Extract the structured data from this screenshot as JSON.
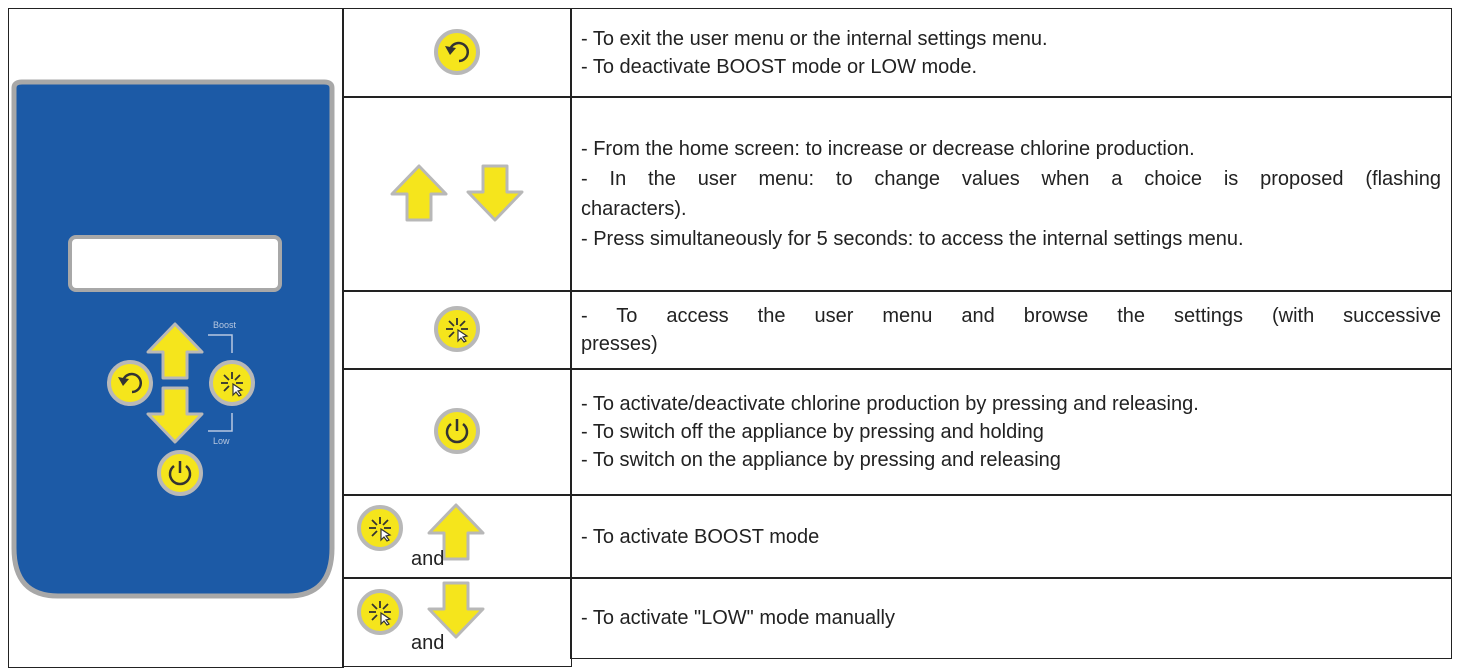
{
  "panel": {
    "boost_label": "Boost",
    "low_label": "Low"
  },
  "table": {
    "rows": [
      {
        "lines": [
          "- To exit the user menu or the internal settings menu.",
          "- To deactivate BOOST mode or LOW mode."
        ]
      },
      {
        "lines": [
          "- From the home screen: to increase or decrease chlorine production.",
          "- In the user menu: to change values when a choice is proposed (flashing",
          "characters).",
          "- Press simultaneously for 5 seconds: to access the internal settings menu."
        ]
      },
      {
        "lines": [
          "- To access the user menu and browse the settings (with successive",
          "presses)"
        ]
      },
      {
        "lines": [
          "- To activate/deactivate chlorine production by pressing and releasing.",
          "- To switch off the appliance by pressing and holding",
          "- To switch on the appliance by pressing and releasing"
        ]
      },
      {
        "joiner": "and",
        "lines": [
          "- To activate BOOST mode"
        ]
      },
      {
        "joiner": "and",
        "lines": [
          "- To activate \"LOW\" mode manually"
        ]
      }
    ]
  }
}
